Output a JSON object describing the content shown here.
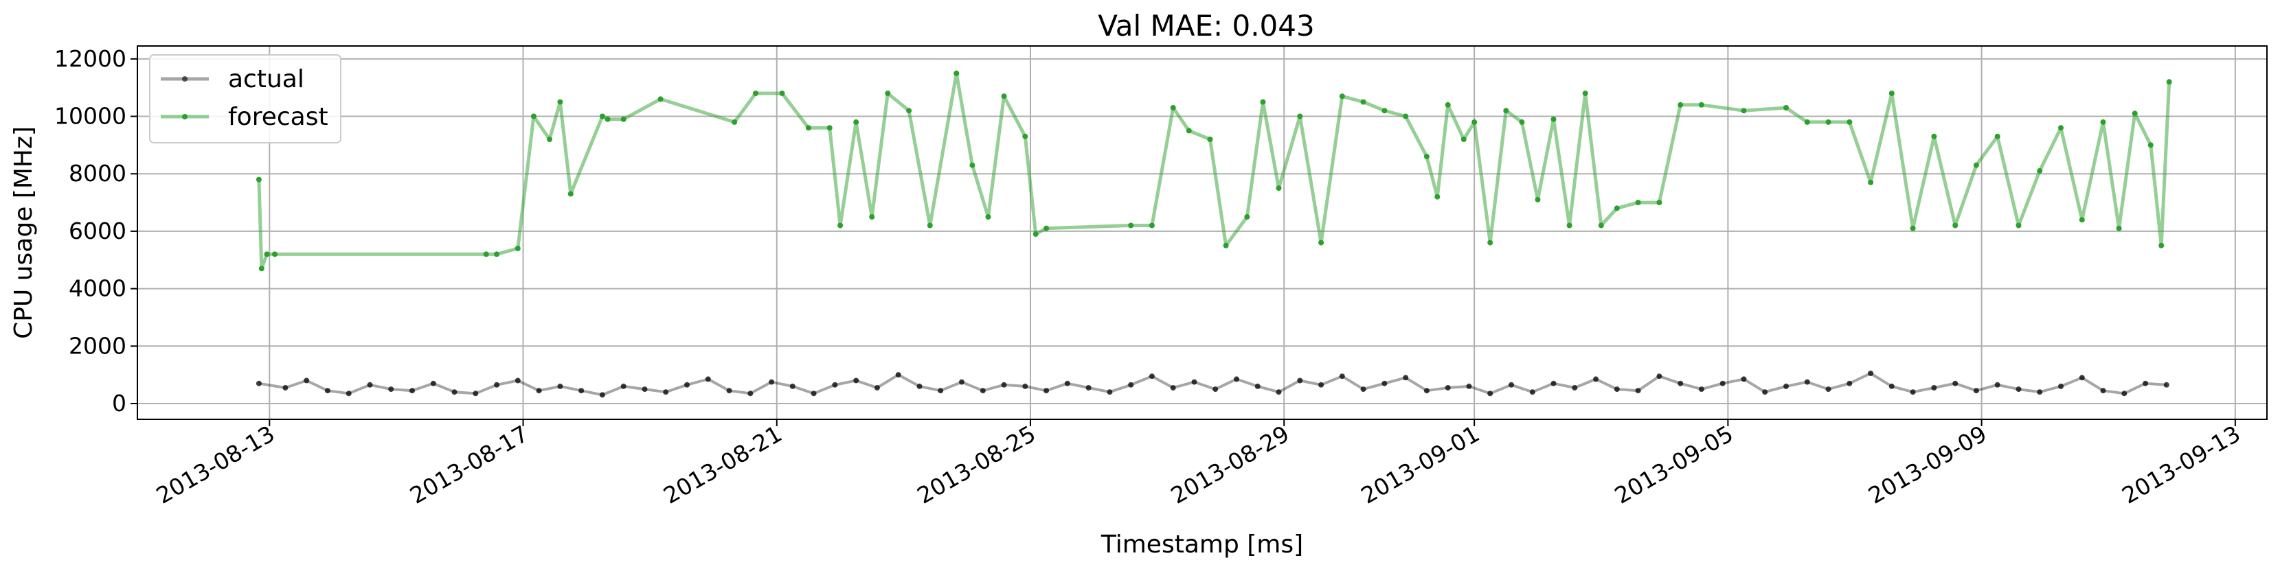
{
  "chart_data": {
    "type": "line",
    "title": "Val MAE: 0.043",
    "xlabel": "Timestamp [ms]",
    "ylabel": "CPU usage [MHz]",
    "xlim": [
      "2013-08-10T22:00",
      "2013-09-13T12:00"
    ],
    "ylim": [
      -550,
      12450
    ],
    "grid": true,
    "legend_position": "top-left",
    "x_ticks": [
      "2013-08-13",
      "2013-08-17",
      "2013-08-21",
      "2013-08-25",
      "2013-08-29",
      "2013-09-01",
      "2013-09-05",
      "2013-09-09",
      "2013-09-13"
    ],
    "y_ticks": [
      0,
      2000,
      4000,
      6000,
      8000,
      10000,
      12000
    ],
    "series": [
      {
        "name": "actual",
        "color": "#000000",
        "x": [
          "2013-08-12T20:00",
          "2013-08-13T06:00",
          "2013-08-13T14:00",
          "2013-08-13T22:00",
          "2013-08-14T06:00",
          "2013-08-14T14:00",
          "2013-08-14T22:00",
          "2013-08-15T06:00",
          "2013-08-15T14:00",
          "2013-08-15T22:00",
          "2013-08-16T06:00",
          "2013-08-16T14:00",
          "2013-08-16T22:00",
          "2013-08-17T06:00",
          "2013-08-17T14:00",
          "2013-08-17T22:00",
          "2013-08-18T06:00",
          "2013-08-18T14:00",
          "2013-08-18T22:00",
          "2013-08-19T06:00",
          "2013-08-19T14:00",
          "2013-08-19T22:00",
          "2013-08-20T06:00",
          "2013-08-20T14:00",
          "2013-08-20T22:00",
          "2013-08-21T06:00",
          "2013-08-21T14:00",
          "2013-08-21T22:00",
          "2013-08-22T06:00",
          "2013-08-22T14:00",
          "2013-08-22T22:00",
          "2013-08-23T06:00",
          "2013-08-23T14:00",
          "2013-08-23T22:00",
          "2013-08-24T06:00",
          "2013-08-24T14:00",
          "2013-08-24T22:00",
          "2013-08-25T06:00",
          "2013-08-25T14:00",
          "2013-08-25T22:00",
          "2013-08-26T06:00",
          "2013-08-26T14:00",
          "2013-08-26T22:00",
          "2013-08-27T06:00",
          "2013-08-27T14:00",
          "2013-08-27T22:00",
          "2013-08-28T06:00",
          "2013-08-28T14:00",
          "2013-08-28T22:00",
          "2013-08-29T06:00",
          "2013-08-29T14:00",
          "2013-08-29T22:00",
          "2013-08-30T06:00",
          "2013-08-30T14:00",
          "2013-08-30T22:00",
          "2013-08-31T06:00",
          "2013-08-31T14:00",
          "2013-08-31T22:00",
          "2013-09-01T06:00",
          "2013-09-01T14:00",
          "2013-09-01T22:00",
          "2013-09-02T06:00",
          "2013-09-02T14:00",
          "2013-09-02T22:00",
          "2013-09-03T06:00",
          "2013-09-03T14:00",
          "2013-09-03T22:00",
          "2013-09-04T06:00",
          "2013-09-04T14:00",
          "2013-09-04T22:00",
          "2013-09-05T06:00",
          "2013-09-05T14:00",
          "2013-09-05T22:00",
          "2013-09-06T06:00",
          "2013-09-06T14:00",
          "2013-09-06T22:00",
          "2013-09-07T06:00",
          "2013-09-07T14:00",
          "2013-09-07T22:00",
          "2013-09-08T06:00",
          "2013-09-08T14:00",
          "2013-09-08T22:00",
          "2013-09-09T06:00",
          "2013-09-09T14:00",
          "2013-09-09T22:00",
          "2013-09-10T06:00",
          "2013-09-10T14:00",
          "2013-09-10T22:00",
          "2013-09-11T06:00",
          "2013-09-11T14:00",
          "2013-09-11T22:00"
        ],
        "values": [
          700,
          550,
          800,
          450,
          350,
          650,
          500,
          450,
          700,
          400,
          350,
          650,
          800,
          450,
          600,
          450,
          300,
          600,
          500,
          400,
          650,
          850,
          450,
          350,
          750,
          600,
          350,
          650,
          800,
          550,
          1000,
          600,
          450,
          750,
          450,
          650,
          600,
          450,
          700,
          550,
          400,
          650,
          950,
          550,
          750,
          500,
          850,
          600,
          400,
          800,
          650,
          950,
          500,
          700,
          900,
          450,
          550,
          600,
          350,
          650,
          400,
          700,
          550,
          850,
          500,
          450,
          950,
          700,
          500,
          700,
          850,
          400,
          600,
          750,
          500,
          700,
          1050,
          600,
          400,
          550,
          700,
          450,
          650,
          500,
          400,
          600,
          900,
          450,
          350,
          700,
          650
        ]
      },
      {
        "name": "forecast",
        "color": "#2ca02c",
        "x": [
          "2013-08-12T20:00",
          "2013-08-12T21:00",
          "2013-08-12T23:00",
          "2013-08-13T02:00",
          "2013-08-16T10:00",
          "2013-08-16T14:00",
          "2013-08-16T22:00",
          "2013-08-17T04:00",
          "2013-08-17T10:00",
          "2013-08-17T14:00",
          "2013-08-17T18:00",
          "2013-08-18T06:00",
          "2013-08-18T08:00",
          "2013-08-18T14:00",
          "2013-08-19T04:00",
          "2013-08-20T08:00",
          "2013-08-20T16:00",
          "2013-08-21T02:00",
          "2013-08-21T12:00",
          "2013-08-21T20:00",
          "2013-08-22T00:00",
          "2013-08-22T06:00",
          "2013-08-22T12:00",
          "2013-08-22T18:00",
          "2013-08-23T02:00",
          "2013-08-23T10:00",
          "2013-08-23T20:00",
          "2013-08-24T02:00",
          "2013-08-24T08:00",
          "2013-08-24T14:00",
          "2013-08-24T22:00",
          "2013-08-25T02:00",
          "2013-08-25T06:00",
          "2013-08-26T14:00",
          "2013-08-26T22:00",
          "2013-08-27T06:00",
          "2013-08-27T12:00",
          "2013-08-27T20:00",
          "2013-08-28T02:00",
          "2013-08-28T10:00",
          "2013-08-28T16:00",
          "2013-08-28T22:00",
          "2013-08-29T06:00",
          "2013-08-29T14:00",
          "2013-08-29T22:00",
          "2013-08-30T06:00",
          "2013-08-30T14:00",
          "2013-08-30T22:00",
          "2013-08-31T06:00",
          "2013-08-31T10:00",
          "2013-08-31T14:00",
          "2013-08-31T20:00",
          "2013-09-01T00:00",
          "2013-09-01T06:00",
          "2013-09-01T12:00",
          "2013-09-01T18:00",
          "2013-09-02T00:00",
          "2013-09-02T06:00",
          "2013-09-02T12:00",
          "2013-09-02T18:00",
          "2013-09-03T00:00",
          "2013-09-03T06:00",
          "2013-09-03T14:00",
          "2013-09-03T22:00",
          "2013-09-04T06:00",
          "2013-09-04T14:00",
          "2013-09-05T06:00",
          "2013-09-05T22:00",
          "2013-09-06T06:00",
          "2013-09-06T14:00",
          "2013-09-06T22:00",
          "2013-09-07T06:00",
          "2013-09-07T14:00",
          "2013-09-07T22:00",
          "2013-09-08T06:00",
          "2013-09-08T14:00",
          "2013-09-08T22:00",
          "2013-09-09T06:00",
          "2013-09-09T14:00",
          "2013-09-09T22:00",
          "2013-09-10T06:00",
          "2013-09-10T14:00",
          "2013-09-10T22:00",
          "2013-09-11T04:00",
          "2013-09-11T10:00",
          "2013-09-11T16:00",
          "2013-09-11T20:00",
          "2013-09-11T23:00"
        ],
        "values": [
          7800,
          4700,
          5200,
          5200,
          5200,
          5200,
          5400,
          10000,
          9200,
          10500,
          7300,
          10000,
          9900,
          9900,
          10600,
          9800,
          10800,
          10800,
          9600,
          9600,
          6200,
          9800,
          6500,
          10800,
          10200,
          6200,
          11500,
          8300,
          6500,
          10700,
          9300,
          5900,
          6100,
          6200,
          6200,
          10300,
          9500,
          9200,
          5500,
          6500,
          10500,
          7500,
          10000,
          5600,
          10700,
          10500,
          10200,
          10000,
          8600,
          7200,
          10400,
          9200,
          9800,
          5600,
          10200,
          9800,
          7100,
          9900,
          6200,
          10800,
          6200,
          6800,
          7000,
          7000,
          10400,
          10400,
          10200,
          10300,
          9800,
          9800,
          9800,
          7700,
          10800,
          6100,
          9300,
          6200,
          8300,
          9300,
          6200,
          8100,
          9600,
          6400,
          9800,
          6100,
          10100,
          9000,
          5500,
          11200
        ]
      }
    ]
  }
}
